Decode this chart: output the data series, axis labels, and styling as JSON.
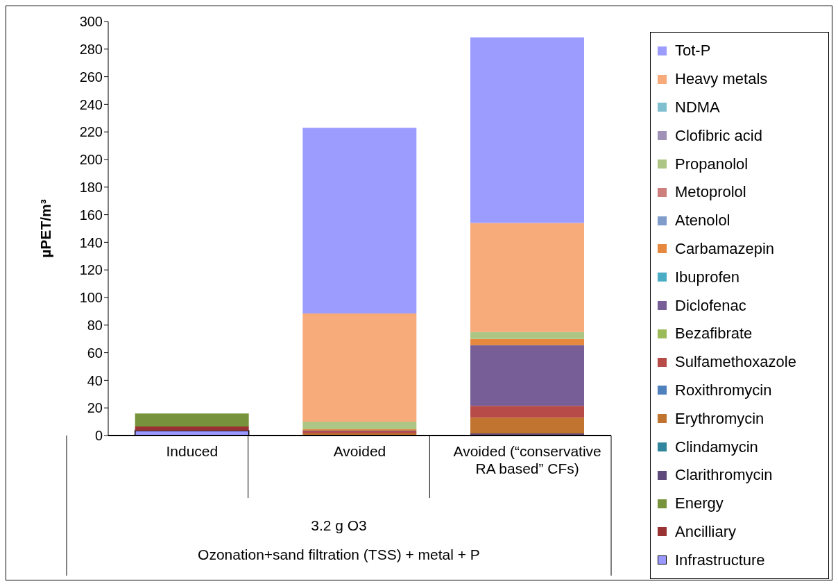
{
  "chart_data": {
    "type": "bar",
    "stacked": true,
    "ylabel": "µPET/m³",
    "categories": [
      "Induced",
      "Avoided",
      "Avoided (“conservative RA based” CFs)"
    ],
    "series": [
      {
        "name": "Infrastructure",
        "color": "#9999ff",
        "values": [
          3.5,
          0,
          0
        ]
      },
      {
        "name": "Ancilliary",
        "color": "#993333",
        "values": [
          3,
          0,
          0
        ]
      },
      {
        "name": "Energy",
        "color": "#77933c",
        "values": [
          9.5,
          0,
          0
        ]
      },
      {
        "name": "Clarithromycin",
        "color": "#604a7b",
        "values": [
          0,
          null,
          1.5
        ]
      },
      {
        "name": "Clindamycin",
        "color": "#31859c",
        "values": [
          0,
          0,
          0
        ]
      },
      {
        "name": "Erythromycin",
        "color": "#c0742f",
        "values": [
          0,
          1.5,
          11.5
        ]
      },
      {
        "name": "Roxithromycin",
        "color": "#4f81bd",
        "values": [
          0,
          0,
          0
        ]
      },
      {
        "name": "Sulfamethoxazole",
        "color": "#b64b47",
        "values": [
          0,
          1.5,
          8.5
        ]
      },
      {
        "name": "Bezafibrate",
        "color": "#9bbb59",
        "values": [
          0,
          0,
          0
        ]
      },
      {
        "name": "Diclofenac",
        "color": "#775e97",
        "values": [
          0,
          0.5,
          44
        ]
      },
      {
        "name": "Ibuprofen",
        "color": "#4bacc6",
        "values": [
          0,
          0,
          0
        ]
      },
      {
        "name": "Carbamazepin",
        "color": "#e6883d",
        "values": [
          0,
          1,
          4.5
        ]
      },
      {
        "name": "Atenolol",
        "color": "#7f9ccb",
        "values": [
          0,
          0,
          0
        ]
      },
      {
        "name": "Metoprolol",
        "color": "#cc7f7d",
        "values": [
          0,
          0,
          0
        ]
      },
      {
        "name": "Propanolol",
        "color": "#adc686",
        "values": [
          0,
          5.5,
          5
        ]
      },
      {
        "name": "Clofibric acid",
        "color": "#a092b7",
        "values": [
          0,
          0,
          0
        ]
      },
      {
        "name": "NDMA",
        "color": "#7fbfd0",
        "values": [
          0,
          0,
          0
        ]
      },
      {
        "name": "Heavy metals",
        "color": "#f7aa7a",
        "values": [
          0,
          78.5,
          79
        ]
      },
      {
        "name": "Tot-P",
        "color": "#9c9cff",
        "values": [
          0,
          134.5,
          134.5
        ]
      }
    ],
    "ylim": [
      0,
      300
    ],
    "yticks": [
      0,
      20,
      40,
      60,
      80,
      100,
      120,
      140,
      160,
      180,
      200,
      220,
      240,
      260,
      280,
      300
    ],
    "legend": "right",
    "annotations": [
      "3.2 g O3",
      "Ozonation+sand filtration (TSS) + metal + P"
    ]
  }
}
